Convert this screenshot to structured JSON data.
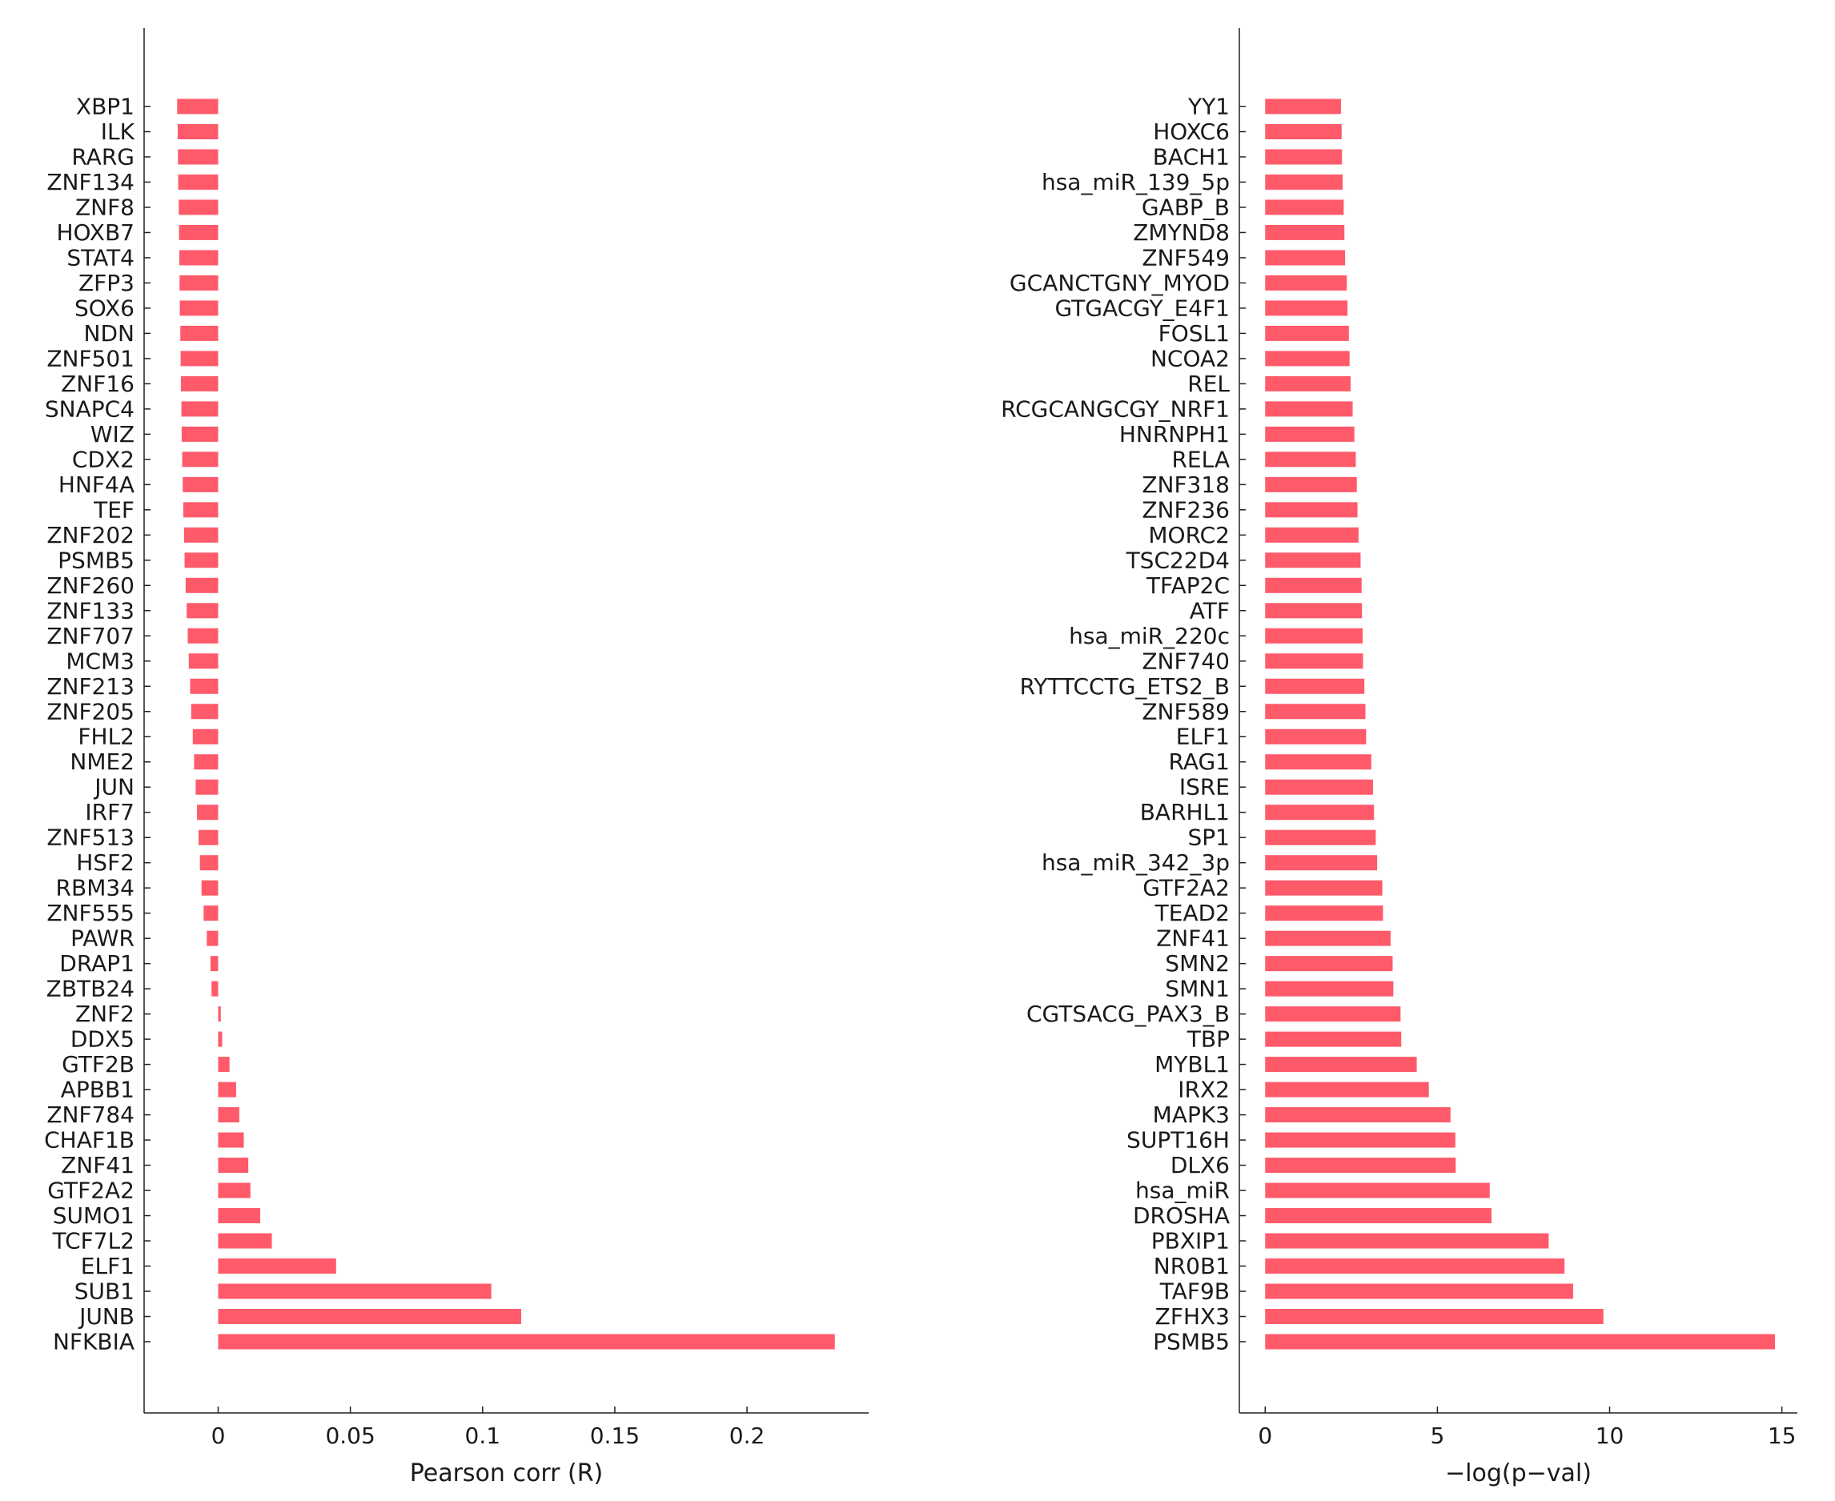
{
  "chart_data": [
    {
      "type": "bar",
      "orientation": "horizontal",
      "xlabel": "Pearson corr (R)",
      "ylabel": "",
      "xlim": [
        -0.028,
        0.246
      ],
      "xticks": [
        0,
        0.05,
        0.1,
        0.15,
        0.2
      ],
      "xtick_labels": [
        "0",
        "0.05",
        "0.1",
        "0.15",
        "0.2"
      ],
      "bar_color": "#ff5a6a",
      "categories": [
        "XBP1",
        "ILK",
        "RARG",
        "ZNF134",
        "ZNF8",
        "HOXB7",
        "STAT4",
        "ZFP3",
        "SOX6",
        "NDN",
        "ZNF501",
        "ZNF16",
        "SNAPC4",
        "WIZ",
        "CDX2",
        "HNF4A",
        "TEF",
        "ZNF202",
        "PSMB5",
        "ZNF260",
        "ZNF133",
        "ZNF707",
        "MCM3",
        "ZNF213",
        "ZNF205",
        "FHL2",
        "NME2",
        "JUN",
        "IRF7",
        "ZNF513",
        "HSF2",
        "RBM34",
        "ZNF555",
        "PAWR",
        "DRAP1",
        "ZBTB24",
        "ZNF2",
        "DDX5",
        "GTF2B",
        "APBB1",
        "ZNF784",
        "CHAF1B",
        "ZNF41",
        "GTF2A2",
        "SUMO1",
        "TCF7L2",
        "ELF1",
        "SUB1",
        "JUNB",
        "NFKBIA"
      ],
      "values": [
        -0.0155,
        -0.0153,
        -0.0152,
        -0.0151,
        -0.0149,
        -0.0148,
        -0.0147,
        -0.0146,
        -0.0145,
        -0.0143,
        -0.0142,
        -0.0141,
        -0.0139,
        -0.0138,
        -0.0136,
        -0.0134,
        -0.0132,
        -0.0129,
        -0.0127,
        -0.0123,
        -0.0119,
        -0.0115,
        -0.0111,
        -0.0106,
        -0.0102,
        -0.0096,
        -0.0091,
        -0.0085,
        -0.008,
        -0.0074,
        -0.0069,
        -0.0063,
        -0.0055,
        -0.0043,
        -0.0029,
        -0.0025,
        0.001,
        0.0015,
        0.0043,
        0.0068,
        0.008,
        0.0097,
        0.0114,
        0.0122,
        0.0159,
        0.0203,
        0.0446,
        0.1033,
        0.1146,
        0.2332
      ]
    },
    {
      "type": "bar",
      "orientation": "horizontal",
      "xlabel": "−log(p−val)",
      "ylabel": "",
      "xlim": [
        -0.75,
        15.45
      ],
      "xticks": [
        0,
        5,
        10,
        15
      ],
      "xtick_labels": [
        "0",
        "5",
        "10",
        "15"
      ],
      "bar_color": "#ff5a6a",
      "categories": [
        "YY1",
        "HOXC6",
        "BACH1",
        "hsa_miR_139_5p",
        "GABP_B",
        "ZMYND8",
        "ZNF549",
        "GCANCTGNY_MYOD",
        "GTGACGY_E4F1",
        "FOSL1",
        "NCOA2",
        "REL",
        "RCGCANGCGY_NRF1",
        "HNRNPH1",
        "RELA",
        "ZNF318",
        "ZNF236",
        "MORC2",
        "TSC22D4",
        "TFAP2C",
        "ATF",
        "hsa_miR_220c",
        "ZNF740",
        "RYTTCCTG_ETS2_B",
        "ZNF589",
        "ELF1",
        "RAG1",
        "ISRE",
        "BARHL1",
        "SP1",
        "hsa_miR_342_3p",
        "GTF2A2",
        "TEAD2",
        "ZNF41",
        "SMN2",
        "SMN1",
        "CGTSACG_PAX3_B",
        "TBP",
        "MYBL1",
        "IRX2",
        "MAPK3",
        "SUPT16H",
        "DLX6",
        "hsa_miR",
        "DROSHA",
        "PBXIP1",
        "NR0B1",
        "TAF9B",
        "ZFHX3",
        "PSMB5"
      ],
      "values": [
        2.2,
        2.22,
        2.23,
        2.25,
        2.28,
        2.3,
        2.32,
        2.37,
        2.39,
        2.43,
        2.45,
        2.48,
        2.54,
        2.59,
        2.63,
        2.66,
        2.68,
        2.71,
        2.77,
        2.8,
        2.81,
        2.83,
        2.84,
        2.88,
        2.91,
        2.93,
        3.08,
        3.13,
        3.16,
        3.21,
        3.25,
        3.4,
        3.42,
        3.64,
        3.7,
        3.72,
        3.93,
        3.95,
        4.4,
        4.75,
        5.38,
        5.52,
        5.53,
        6.52,
        6.57,
        8.23,
        8.69,
        8.94,
        9.82,
        14.8
      ]
    }
  ]
}
